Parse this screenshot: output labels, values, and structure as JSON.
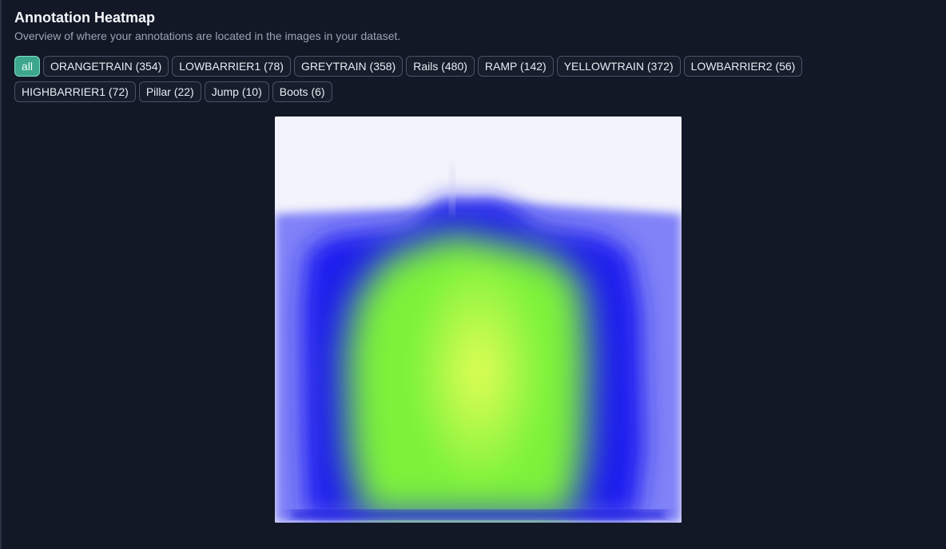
{
  "header": {
    "title": "Annotation Heatmap",
    "subtitle": "Overview of where your annotations are located in the images in your dataset."
  },
  "filters": [
    {
      "label": "all",
      "active": true
    },
    {
      "label": "ORANGETRAIN (354)",
      "active": false
    },
    {
      "label": "LOWBARRIER1 (78)",
      "active": false
    },
    {
      "label": "GREYTRAIN (358)",
      "active": false
    },
    {
      "label": "Rails (480)",
      "active": false
    },
    {
      "label": "RAMP (142)",
      "active": false
    },
    {
      "label": "YELLOWTRAIN (372)",
      "active": false
    },
    {
      "label": "LOWBARRIER2 (56)",
      "active": false
    },
    {
      "label": "HIGHBARRIER1 (72)",
      "active": false
    },
    {
      "label": "Pillar (22)",
      "active": false
    },
    {
      "label": "Jump (10)",
      "active": false
    },
    {
      "label": "Boots (6)",
      "active": false
    }
  ],
  "colors": {
    "background": "#121826",
    "chip_active": "#3fa68e",
    "heat_low": "#f3f4fb",
    "heat_mid": "#1c1cf0",
    "heat_high": "#7cf23a",
    "heat_peak": "#e8ff58"
  }
}
